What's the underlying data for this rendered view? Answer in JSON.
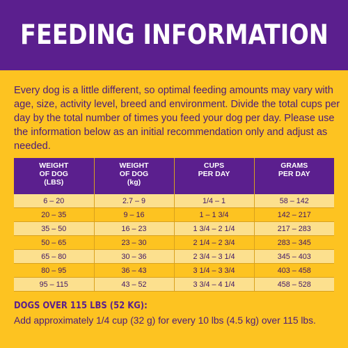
{
  "header": {
    "title": "FEEDING INFORMATION"
  },
  "intro": "Every dog is a little different, so optimal feeding amounts may vary with age, size, activity level, breed and environment. Divide the total cups per day by the total number of times you feed your dog per day. Please use the information below as an initial recommendation only and adjust as needed.",
  "table": {
    "headers": [
      "WEIGHT\nOF DOG\n(LBS)",
      "WEIGHT\nOF DOG\n(kg)",
      "CUPS\nPER DAY",
      "GRAMS\nPER DAY"
    ],
    "rows": [
      [
        "6 – 20",
        "2.7 – 9",
        "1/4 – 1",
        "58 – 142"
      ],
      [
        "20 – 35",
        "9 – 16",
        "1 – 1 3/4",
        "142 – 217"
      ],
      [
        "35 – 50",
        "16 – 23",
        "1 3/4 – 2 1/4",
        "217 – 283"
      ],
      [
        "50 – 65",
        "23 – 30",
        "2 1/4 – 2 3/4",
        "283 – 345"
      ],
      [
        "65 – 80",
        "30 – 36",
        "2 3/4 – 3 1/4",
        "345 – 403"
      ],
      [
        "80 – 95",
        "36 – 43",
        "3 1/4 – 3 3/4",
        "403 – 458"
      ],
      [
        "95 – 115",
        "43 – 52",
        "3 3/4 – 4 1/4",
        "458 – 528"
      ]
    ]
  },
  "note": {
    "title": "DOGS OVER 115 LBS (52 KG):",
    "text": "Add approximately 1/4 cup (32 g) for every 10 lbs (4.5 kg) over 115 lbs."
  },
  "colors": {
    "purple": "#5B1F8E",
    "yellow": "#FDC321",
    "light_yellow": "#FCE08E"
  }
}
